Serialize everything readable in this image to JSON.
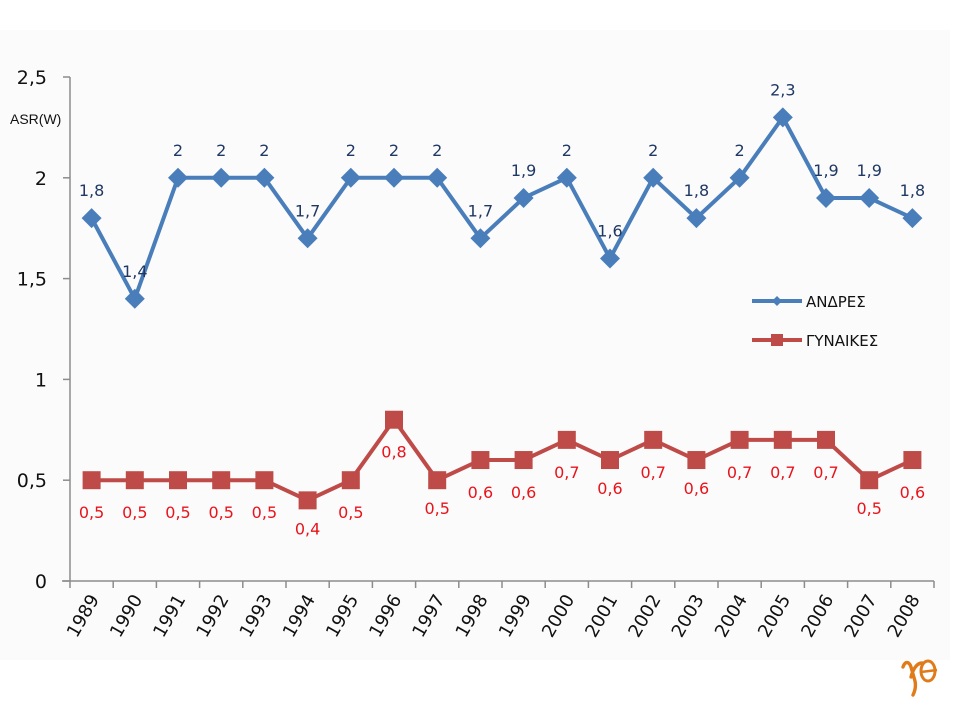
{
  "chart_data": {
    "type": "line",
    "title": "",
    "xlabel": "",
    "ylabel": "ASR(W)",
    "ylim": [
      0,
      2.5
    ],
    "y_ticks": [
      0,
      0.5,
      1,
      1.5,
      2,
      2.5
    ],
    "y_tick_labels": [
      "0",
      "0,5",
      "1",
      "1,5",
      "2",
      "2,5"
    ],
    "grid": false,
    "legend_position": "right",
    "categories": [
      "1989",
      "1990",
      "1991",
      "1992",
      "1993",
      "1994",
      "1995",
      "1996",
      "1997",
      "1998",
      "1999",
      "2000",
      "2001",
      "2002",
      "2003",
      "2004",
      "2005",
      "2006",
      "2007",
      "2008"
    ],
    "series": [
      {
        "name": "ΑΝΔΡΕΣ",
        "color": "#4a7ebb",
        "label_color": "#1f3864",
        "marker": "diamond",
        "values": [
          1.8,
          1.4,
          2,
          2,
          2,
          1.7,
          2,
          2,
          2,
          1.7,
          1.9,
          2,
          1.6,
          2,
          1.8,
          2,
          2.3,
          1.9,
          1.9,
          1.8
        ],
        "labels": [
          "1,8",
          "1,4",
          "2",
          "2",
          "2",
          "1,7",
          "2",
          "2",
          "2",
          "1,7",
          "1,9",
          "2",
          "1,6",
          "2",
          "1,8",
          "2",
          "2,3",
          "1,9",
          "1,9",
          "1,8"
        ]
      },
      {
        "name": "ΓΥΝΑΙΚΕΣ",
        "color": "#be4b48",
        "label_color": "#e8141c",
        "marker": "square",
        "values": [
          0.5,
          0.5,
          0.5,
          0.5,
          0.5,
          0.4,
          0.5,
          0.8,
          0.5,
          0.6,
          0.6,
          0.7,
          0.6,
          0.7,
          0.6,
          0.7,
          0.7,
          0.7,
          0.5,
          0.6
        ],
        "labels": [
          "0,5",
          "0,5",
          "0,5",
          "0,5",
          "0,5",
          "0,4",
          "0,5",
          "0,8",
          "0,5",
          "0,6",
          "0,6",
          "0,7",
          "0,6",
          "0,7",
          "0,6",
          "0,7",
          "0,7",
          "0,7",
          "0,5",
          "0,6"
        ]
      }
    ]
  },
  "logo": {
    "text": "γθ",
    "color": "#e07b1a"
  }
}
